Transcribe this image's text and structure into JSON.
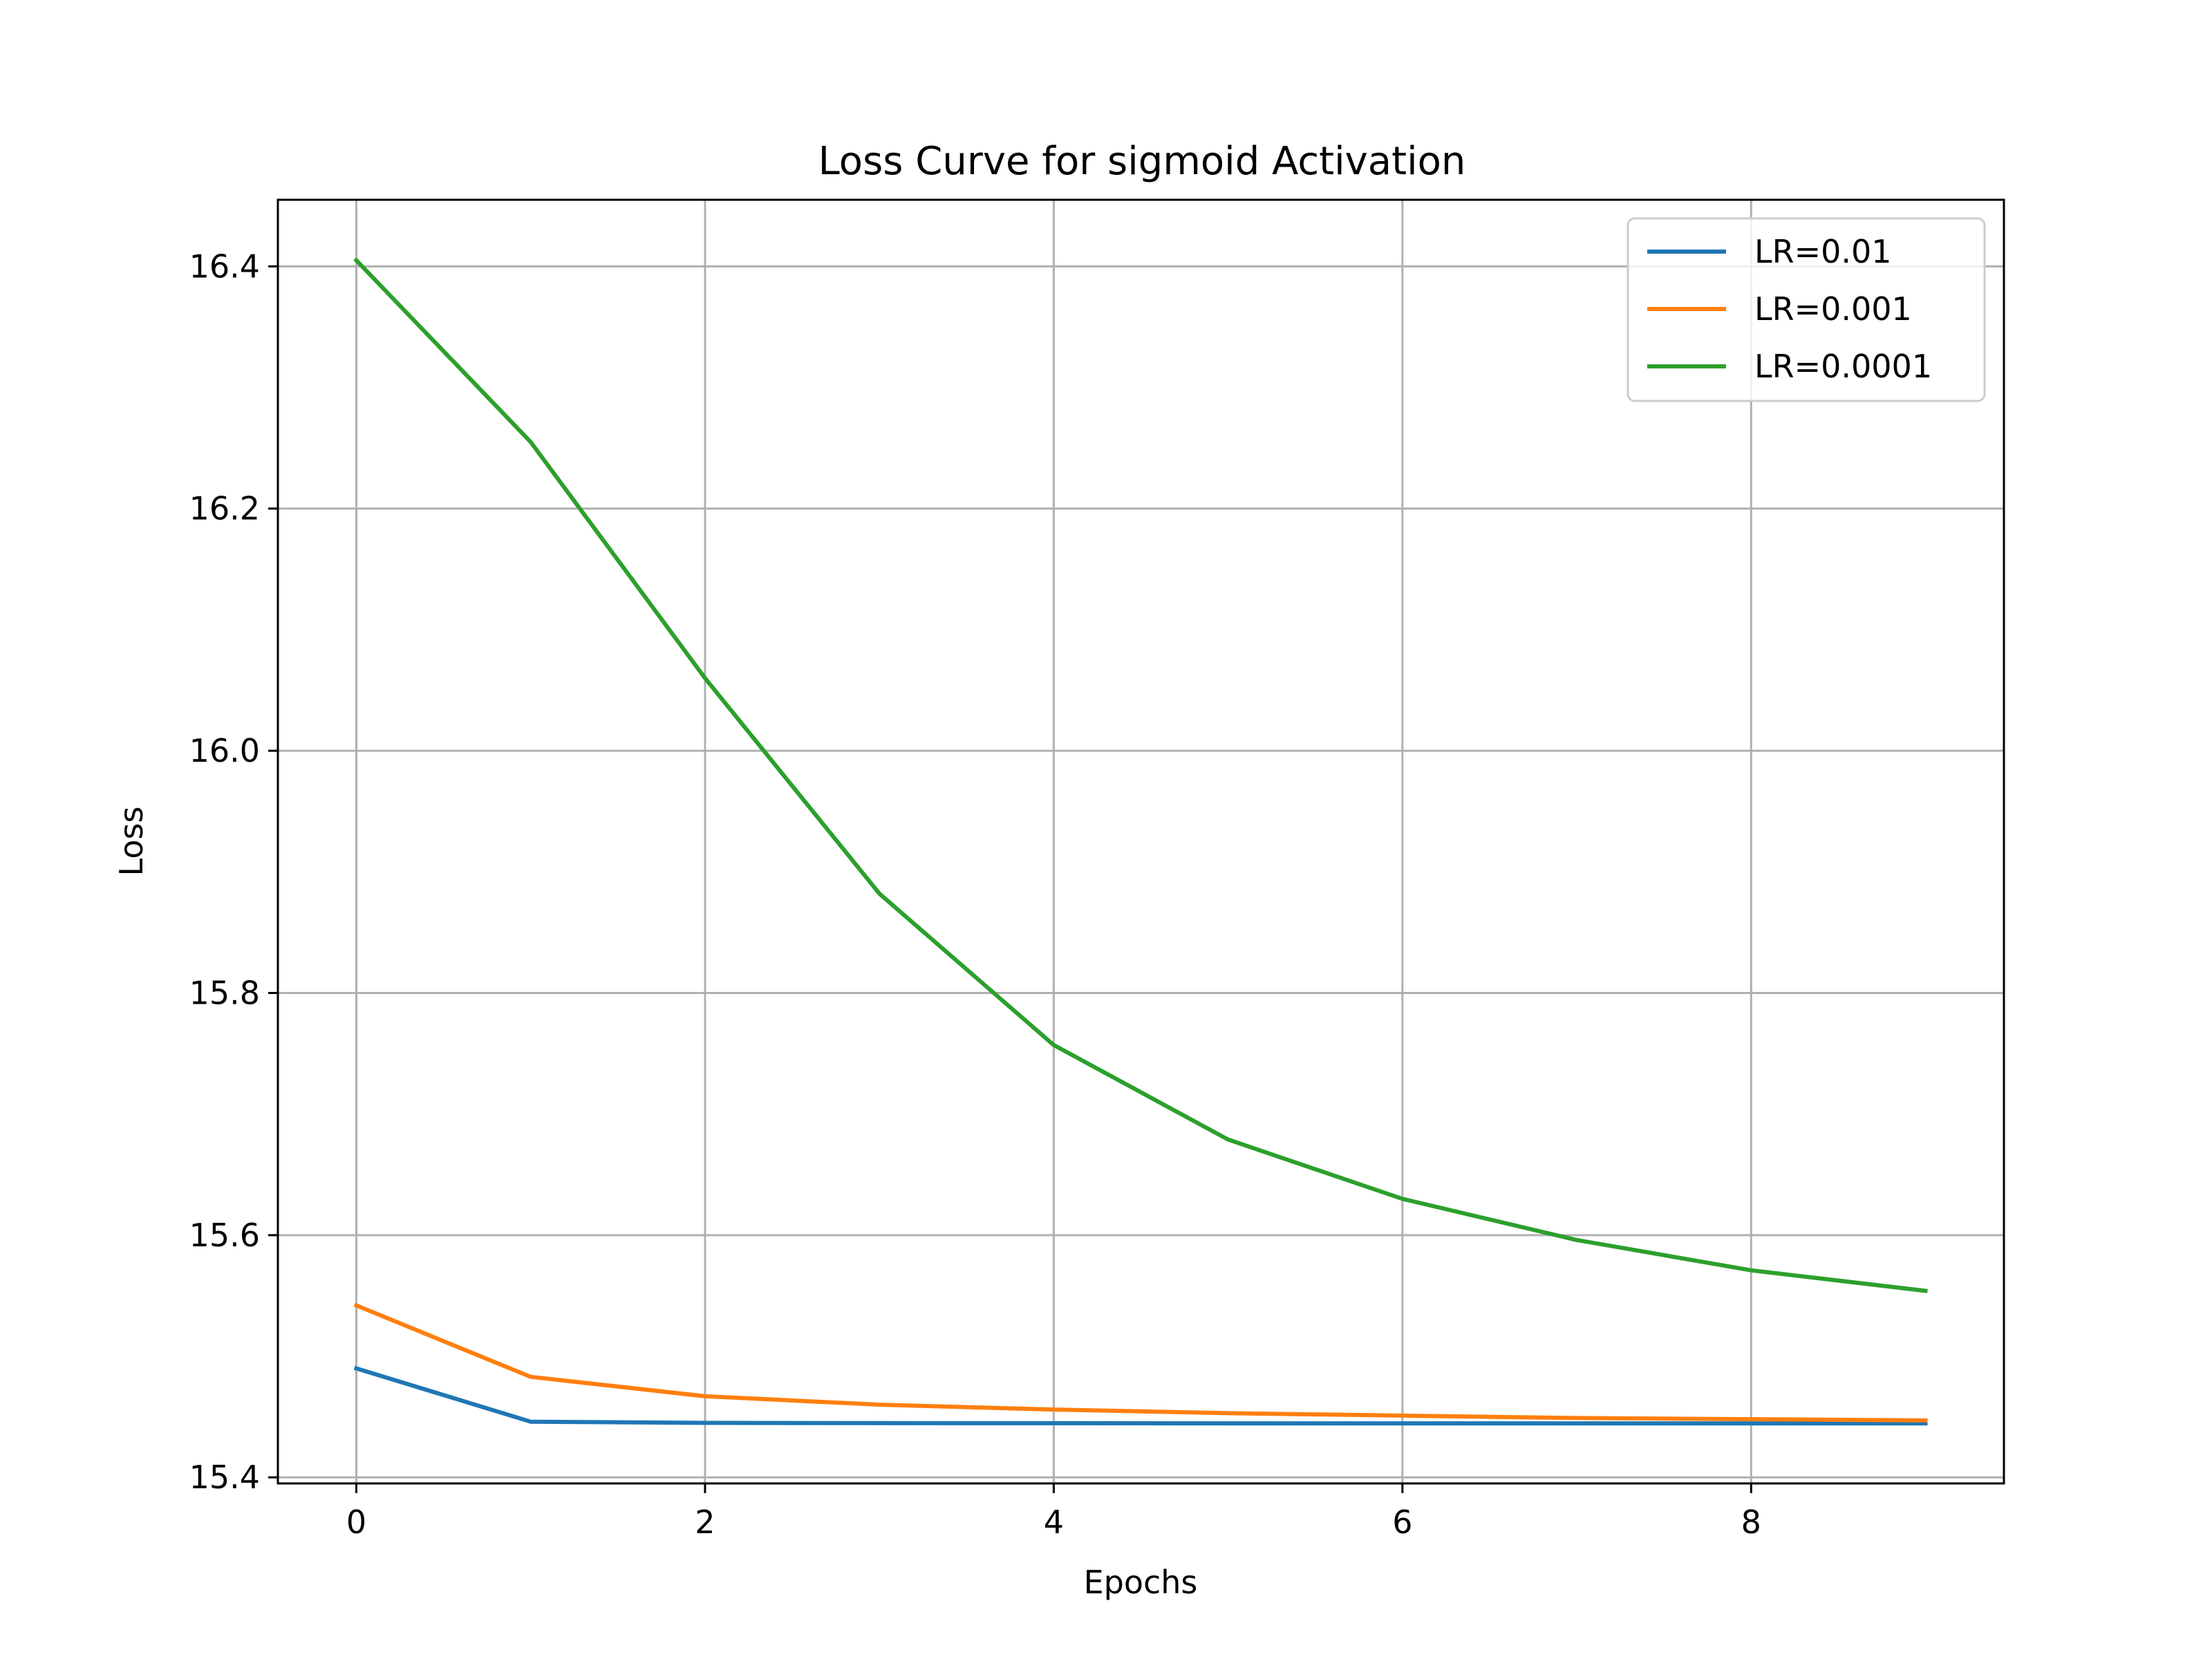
{
  "chart_data": {
    "type": "line",
    "title": "Loss Curve for sigmoid Activation",
    "xlabel": "Epochs",
    "ylabel": "Loss",
    "x": [
      0,
      1,
      2,
      3,
      4,
      5,
      6,
      7,
      8,
      9
    ],
    "xlim": [
      -0.45,
      9.45
    ],
    "ylim": [
      15.395,
      16.455
    ],
    "xticks": [
      0,
      2,
      4,
      6,
      8
    ],
    "xtick_labels": [
      "0",
      "2",
      "4",
      "6",
      "8"
    ],
    "yticks": [
      15.4,
      15.6,
      15.8,
      16.0,
      16.2,
      16.4
    ],
    "ytick_labels": [
      "15.4",
      "15.6",
      "15.8",
      "16.0",
      "16.2",
      "16.4"
    ],
    "grid": true,
    "legend_position": "top-right",
    "series": [
      {
        "name": "LR=0.01",
        "color": "#1f77b4",
        "values": [
          15.49,
          15.446,
          15.445,
          15.4448,
          15.4447,
          15.4446,
          15.4446,
          15.4446,
          15.4446,
          15.4446
        ]
      },
      {
        "name": "LR=0.001",
        "color": "#ff7f0e",
        "values": [
          15.542,
          15.483,
          15.467,
          15.46,
          15.456,
          15.453,
          15.451,
          15.449,
          15.448,
          15.447
        ]
      },
      {
        "name": "LR=0.0001",
        "color": "#2ca02c",
        "values": [
          16.405,
          16.255,
          16.06,
          15.882,
          15.757,
          15.679,
          15.63,
          15.596,
          15.571,
          15.554
        ]
      }
    ]
  }
}
